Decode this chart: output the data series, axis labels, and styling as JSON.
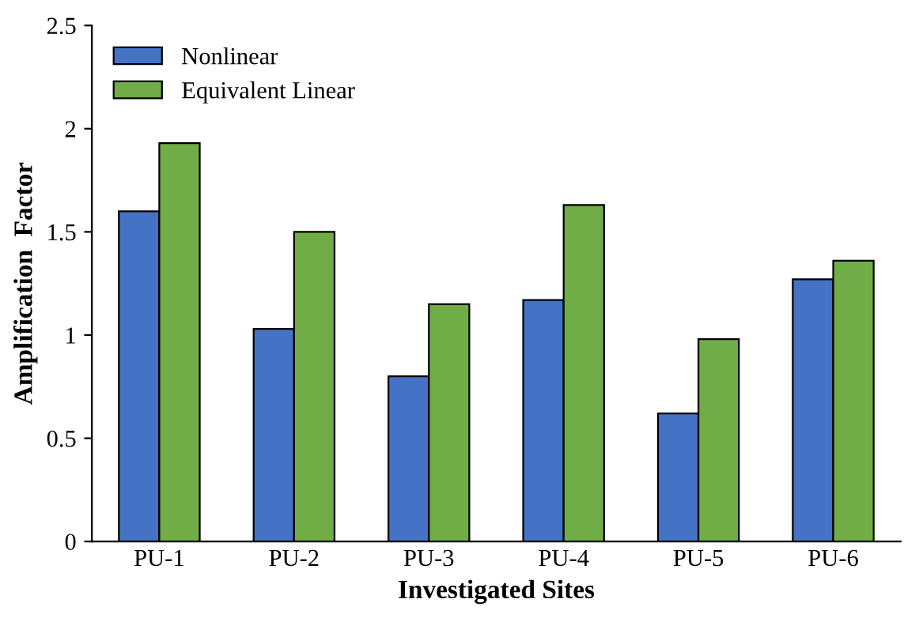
{
  "chart_data": {
    "type": "bar",
    "xlabel": "Investigated Sites",
    "ylabel": "Amplification  Factor",
    "categories": [
      "PU-1",
      "PU-2",
      "PU-3",
      "PU-4",
      "PU-5",
      "PU-6"
    ],
    "series": [
      {
        "name": "Nonlinear",
        "color": "#4472c4",
        "values": [
          1.6,
          1.03,
          0.8,
          1.17,
          0.62,
          1.27
        ]
      },
      {
        "name": "Equivalent Linear",
        "color": "#70ad47",
        "values": [
          1.93,
          1.5,
          1.15,
          1.63,
          0.98,
          1.36
        ]
      }
    ],
    "ylim": [
      0,
      2.5
    ],
    "yticks": [
      0,
      {
        "value": 0.5,
        "label": "0.5"
      },
      1,
      {
        "value": 1.5,
        "label": "1.5"
      },
      2,
      {
        "value": 2.5,
        "label": "2.5"
      }
    ],
    "grid": false,
    "legend": "top left"
  }
}
